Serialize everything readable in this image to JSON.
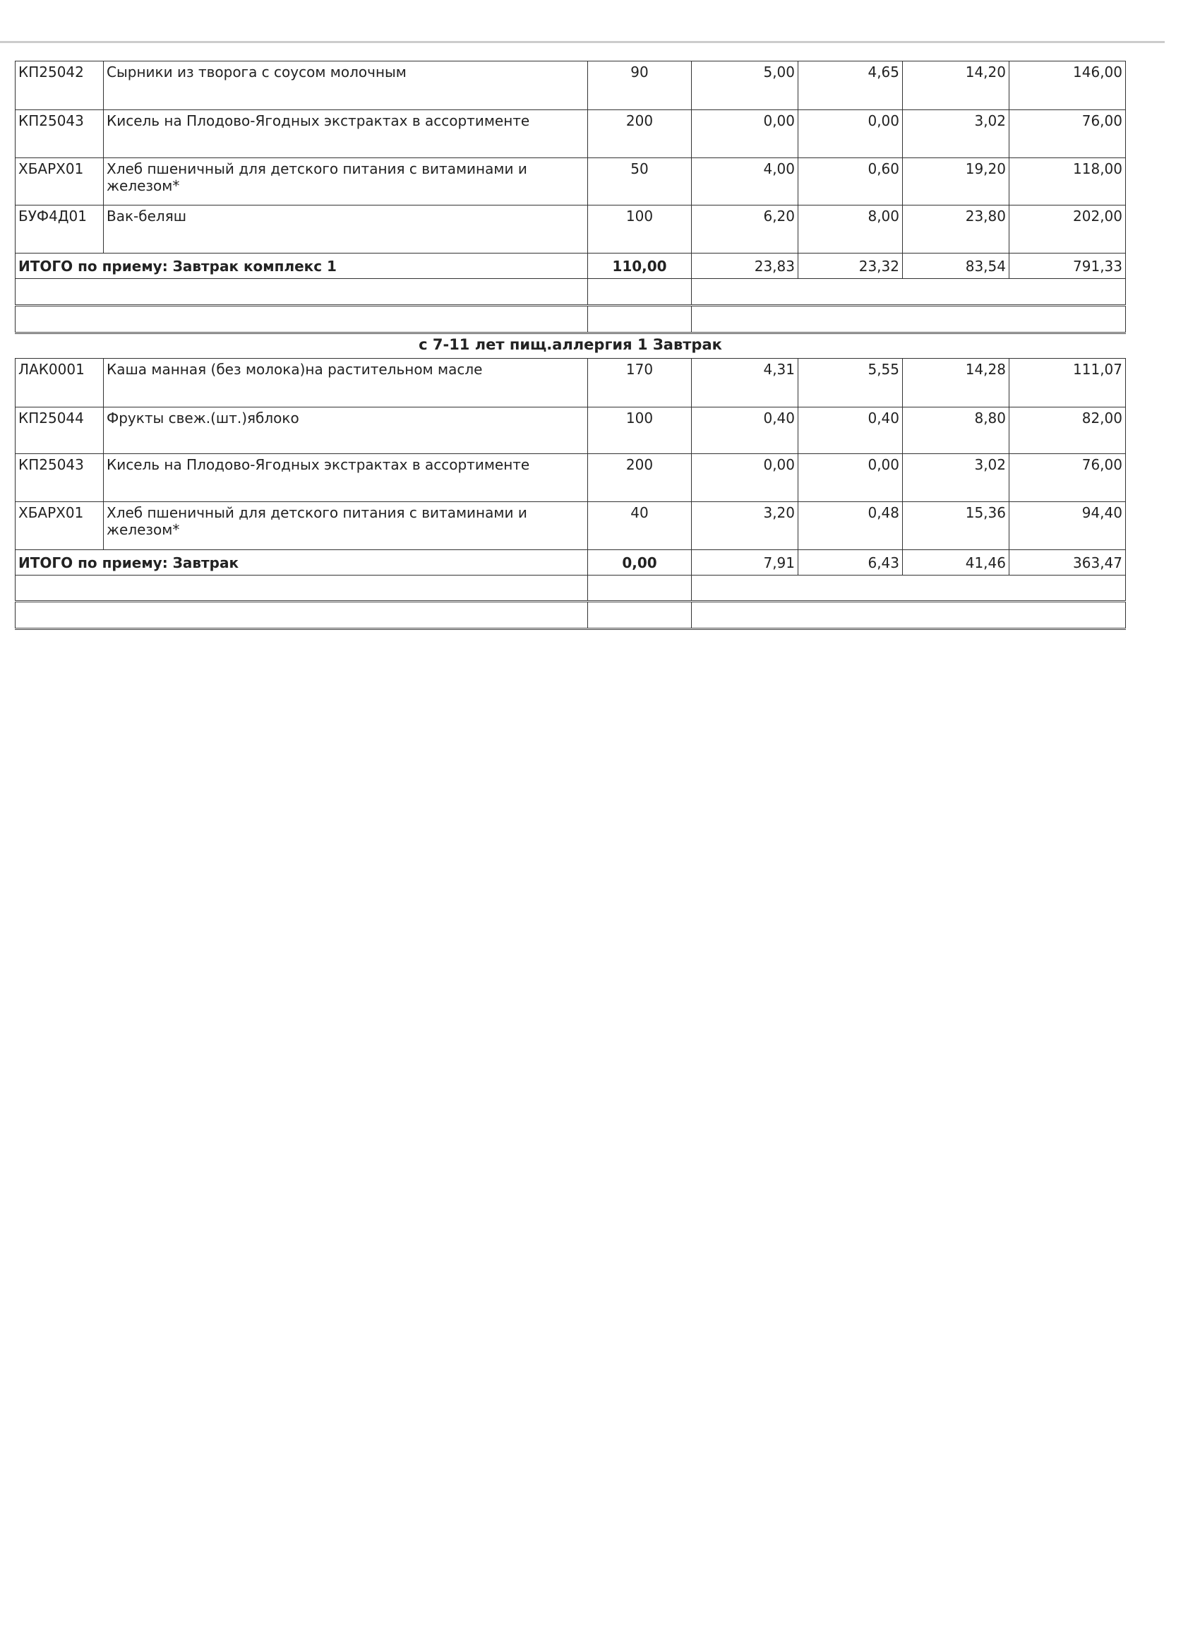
{
  "section1": {
    "rows": [
      {
        "code": "КП25042",
        "name": "Сырники из творога с соусом молочным",
        "qty": "90",
        "protein": "5,00",
        "fat": "4,65",
        "carbs": "14,20",
        "kcal": "146,00"
      },
      {
        "code": "КП25043",
        "name": "Кисель на Плодово-Ягодных экстрактах в ассортименте",
        "qty": "200",
        "protein": "0,00",
        "fat": "0,00",
        "carbs": "3,02",
        "kcal": "76,00"
      },
      {
        "code": "ХБАРХ01",
        "name": "Хлеб пшеничный для детского питания с витаминами и железом*",
        "qty": "50",
        "protein": "4,00",
        "fat": "0,60",
        "carbs": "19,20",
        "kcal": "118,00"
      },
      {
        "code": "БУФ4Д01",
        "name": "Вак-беляш",
        "qty": "100",
        "protein": "6,20",
        "fat": "8,00",
        "carbs": "23,80",
        "kcal": "202,00"
      }
    ],
    "total": {
      "label": "ИТОГО по приему: Завтрак комплекс 1",
      "qty": "110,00",
      "protein": "23,83",
      "fat": "23,32",
      "carbs": "83,54",
      "kcal": "791,33"
    }
  },
  "section2": {
    "title": "с 7-11 лет пищ.аллергия 1 Завтрак",
    "rows": [
      {
        "code": "ЛАК0001",
        "name": "Каша манная (без молока)на растительном масле",
        "qty": "170",
        "protein": "4,31",
        "fat": "5,55",
        "carbs": "14,28",
        "kcal": "111,07"
      },
      {
        "code": "КП25044",
        "name": "Фрукты свеж.(шт.)яблоко",
        "qty": "100",
        "protein": "0,40",
        "fat": "0,40",
        "carbs": "8,80",
        "kcal": "82,00"
      },
      {
        "code": "КП25043",
        "name": "Кисель на Плодово-Ягодных экстрактах в ассортименте",
        "qty": "200",
        "protein": "0,00",
        "fat": "0,00",
        "carbs": "3,02",
        "kcal": "76,00"
      },
      {
        "code": "ХБАРХ01",
        "name": "Хлеб пшеничный для детского питания с витаминами и железом*",
        "qty": "40",
        "protein": "3,20",
        "fat": "0,48",
        "carbs": "15,36",
        "kcal": "94,40"
      }
    ],
    "total": {
      "label": "ИТОГО по приему: Завтрак",
      "qty": "0,00",
      "protein": "7,91",
      "fat": "6,43",
      "carbs": "41,46",
      "kcal": "363,47"
    }
  }
}
